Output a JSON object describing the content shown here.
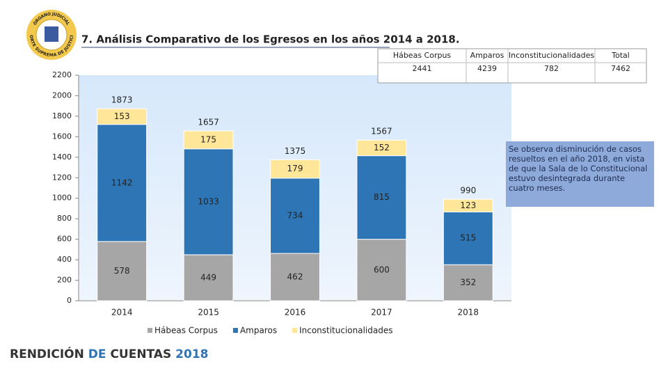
{
  "logo": {
    "top": "ÓRGANO JUDICIAL",
    "bottom": "CORTE SUPREMA DE JUSTICIA"
  },
  "footer": [
    "RENDICIÓN",
    "DE",
    "CUENTAS",
    "2018"
  ],
  "table": {
    "headers": [
      "Hábeas Corpus",
      "Amparos",
      "Inconstitucionalidades",
      "Total"
    ],
    "values": [
      2441,
      4239,
      782,
      7462
    ]
  },
  "note": "Se observa disminución de casos resueltos en el año 2018, en vista de que la Sala de lo Constitucional estuvo desintegrada durante cuatro meses.",
  "chart_data": {
    "type": "stacked_bar",
    "title": "7. Análisis Comparativo de los Egresos en los años 2014 a 2018.",
    "categories": [
      "2014",
      "2015",
      "2016",
      "2017",
      "2018"
    ],
    "series": [
      {
        "name": "Hábeas Corpus",
        "color": "#a6a6a6",
        "values": [
          578,
          449,
          462,
          600,
          352
        ]
      },
      {
        "name": "Amparos",
        "color": "#2e75b6",
        "values": [
          1142,
          1033,
          734,
          815,
          515
        ]
      },
      {
        "name": "Inconstitucionalidades",
        "color": "#ffe699",
        "values": [
          153,
          175,
          179,
          152,
          123
        ]
      }
    ],
    "totals": [
      1873,
      1657,
      1375,
      1567,
      990
    ],
    "ylim": [
      0,
      2200
    ],
    "yticks": [
      0,
      200,
      400,
      600,
      800,
      1000,
      1200,
      1400,
      1600,
      1800,
      2000,
      2200
    ],
    "legend": "bottom"
  }
}
